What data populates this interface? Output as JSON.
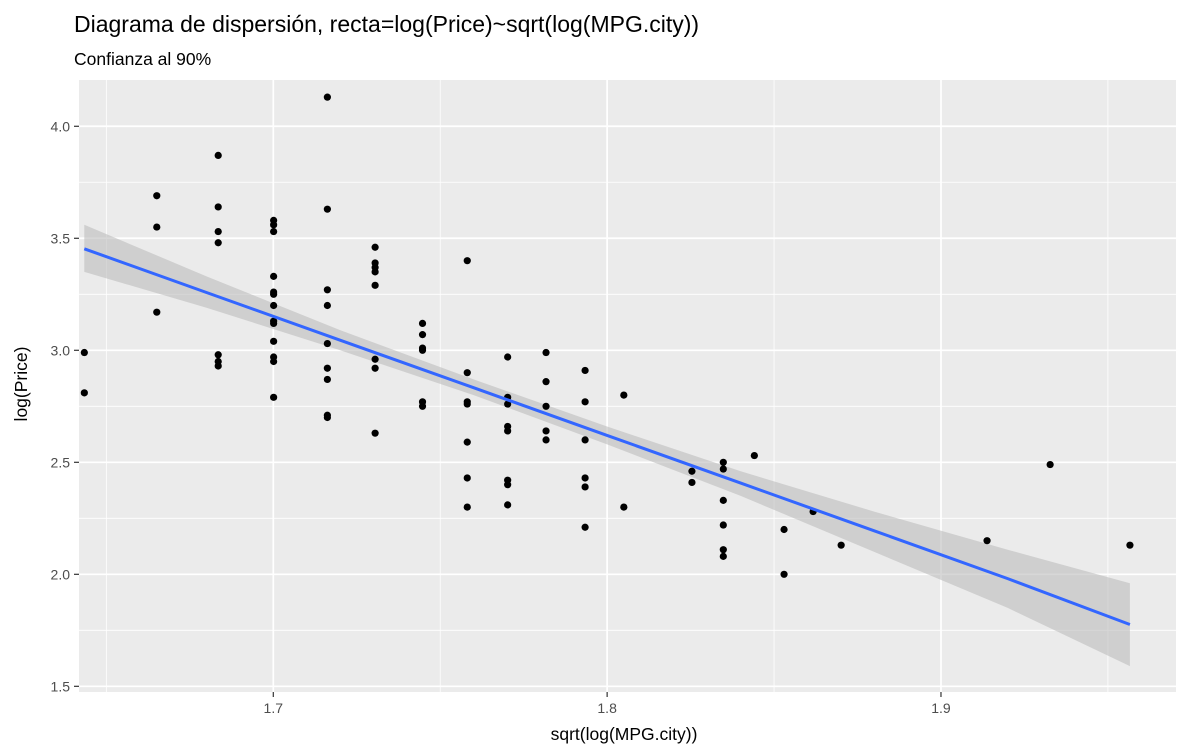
{
  "chart_data": {
    "type": "scatter",
    "title": "Diagrama de dispersión, recta=log(Price)~sqrt(log(MPG.city))",
    "subtitle": "Confianza al 90%",
    "xlabel": "sqrt(log(MPG.city))",
    "ylabel": "log(Price)",
    "xlim": [
      1.6418,
      1.9704
    ],
    "ylim": [
      1.4746,
      4.2066
    ],
    "x_ticks": [
      1.7,
      1.8,
      1.9
    ],
    "x_tick_labels": [
      "1.7",
      "1.8",
      "1.9"
    ],
    "y_ticks": [
      1.5,
      2.0,
      2.5,
      3.0,
      3.5,
      4.0
    ],
    "y_tick_labels": [
      "1.5",
      "2.0",
      "2.5",
      "3.0",
      "3.5",
      "4.0"
    ],
    "grid": true,
    "colors": {
      "panel_bg": "#ebebeb",
      "grid_major": "#ffffff",
      "points": "#000000",
      "fit_line": "#3366ff",
      "ribbon": "#bdbdbd"
    },
    "points": [
      [
        1.6434,
        2.99
      ],
      [
        1.6434,
        2.81
      ],
      [
        1.6651,
        3.69
      ],
      [
        1.6651,
        3.55
      ],
      [
        1.6651,
        3.17
      ],
      [
        1.6835,
        3.87
      ],
      [
        1.6835,
        3.64
      ],
      [
        1.6835,
        3.53
      ],
      [
        1.6835,
        3.48
      ],
      [
        1.6835,
        2.98
      ],
      [
        1.6835,
        2.95
      ],
      [
        1.6835,
        2.93
      ],
      [
        1.7001,
        3.58
      ],
      [
        1.7001,
        3.56
      ],
      [
        1.7001,
        3.53
      ],
      [
        1.7001,
        3.33
      ],
      [
        1.7001,
        3.26
      ],
      [
        1.7001,
        3.25
      ],
      [
        1.7001,
        3.2
      ],
      [
        1.7001,
        3.13
      ],
      [
        1.7001,
        3.12
      ],
      [
        1.7001,
        3.04
      ],
      [
        1.7001,
        2.97
      ],
      [
        1.7001,
        2.95
      ],
      [
        1.7001,
        2.79
      ],
      [
        1.7162,
        4.13
      ],
      [
        1.7162,
        3.63
      ],
      [
        1.7162,
        3.27
      ],
      [
        1.7162,
        3.2
      ],
      [
        1.7162,
        3.03
      ],
      [
        1.7162,
        2.92
      ],
      [
        1.7162,
        2.87
      ],
      [
        1.7162,
        2.71
      ],
      [
        1.7162,
        2.7
      ],
      [
        1.7305,
        3.46
      ],
      [
        1.7305,
        3.39
      ],
      [
        1.7305,
        3.37
      ],
      [
        1.7305,
        3.35
      ],
      [
        1.7305,
        3.29
      ],
      [
        1.7305,
        2.96
      ],
      [
        1.7305,
        2.92
      ],
      [
        1.7305,
        2.63
      ],
      [
        1.7447,
        3.12
      ],
      [
        1.7447,
        3.07
      ],
      [
        1.7447,
        3.01
      ],
      [
        1.7447,
        3.0
      ],
      [
        1.7447,
        2.77
      ],
      [
        1.7447,
        2.75
      ],
      [
        1.7581,
        3.4
      ],
      [
        1.7581,
        2.9
      ],
      [
        1.7581,
        2.77
      ],
      [
        1.7581,
        2.76
      ],
      [
        1.7581,
        2.59
      ],
      [
        1.7581,
        2.43
      ],
      [
        1.7581,
        2.3
      ],
      [
        1.7702,
        2.97
      ],
      [
        1.7702,
        2.79
      ],
      [
        1.7702,
        2.76
      ],
      [
        1.7702,
        2.66
      ],
      [
        1.7702,
        2.64
      ],
      [
        1.7702,
        2.42
      ],
      [
        1.7702,
        2.4
      ],
      [
        1.7702,
        2.31
      ],
      [
        1.7817,
        2.99
      ],
      [
        1.7817,
        2.86
      ],
      [
        1.7817,
        2.75
      ],
      [
        1.7817,
        2.64
      ],
      [
        1.7817,
        2.6
      ],
      [
        1.7934,
        2.91
      ],
      [
        1.7934,
        2.77
      ],
      [
        1.7934,
        2.6
      ],
      [
        1.7934,
        2.43
      ],
      [
        1.7934,
        2.39
      ],
      [
        1.7934,
        2.21
      ],
      [
        1.805,
        2.8
      ],
      [
        1.805,
        2.3
      ],
      [
        1.8254,
        2.46
      ],
      [
        1.8254,
        2.41
      ],
      [
        1.8348,
        2.5
      ],
      [
        1.8348,
        2.47
      ],
      [
        1.8348,
        2.33
      ],
      [
        1.8348,
        2.22
      ],
      [
        1.8348,
        2.11
      ],
      [
        1.8348,
        2.08
      ],
      [
        1.8441,
        2.53
      ],
      [
        1.853,
        2.2
      ],
      [
        1.853,
        2.0
      ],
      [
        1.8617,
        2.28
      ],
      [
        1.8701,
        2.13
      ],
      [
        1.9138,
        2.15
      ],
      [
        1.9327,
        2.49
      ],
      [
        1.9566,
        2.13
      ]
    ],
    "fit": {
      "x": [
        1.6434,
        1.68,
        1.72,
        1.76,
        1.8,
        1.84,
        1.88,
        1.92,
        1.9566
      ],
      "y": [
        3.453,
        3.258,
        3.045,
        2.833,
        2.62,
        2.407,
        2.194,
        1.981,
        1.776
      ],
      "lower": [
        3.35,
        3.19,
        3.0,
        2.8,
        2.58,
        2.35,
        2.1,
        1.85,
        1.59
      ],
      "upper": [
        3.56,
        3.33,
        3.09,
        2.87,
        2.66,
        2.46,
        2.28,
        2.11,
        1.96
      ]
    }
  }
}
